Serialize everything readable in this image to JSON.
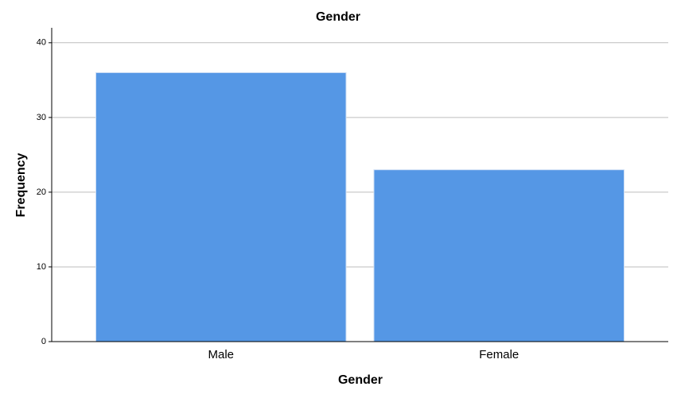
{
  "chart_data": {
    "type": "bar",
    "title": "Gender",
    "x_label": "Gender",
    "y_label": "Frequency",
    "categories": [
      "Male",
      "Female"
    ],
    "values": [
      36,
      23
    ],
    "color": "#5597e5",
    "ylim": [
      0,
      42
    ],
    "yticks": [
      0,
      10,
      20,
      30,
      40
    ],
    "grid": true
  }
}
